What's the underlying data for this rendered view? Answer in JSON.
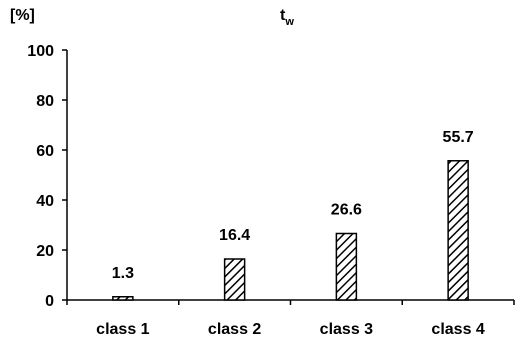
{
  "chart_data": {
    "type": "bar",
    "title": "t",
    "title_subscript": "w",
    "ylabel": "[%]",
    "xlabel": "",
    "categories": [
      "class 1",
      "class 2",
      "class 3",
      "class 4"
    ],
    "values": [
      1.3,
      16.4,
      26.6,
      55.7
    ],
    "data_labels": [
      "1.3",
      "16.4",
      "26.6",
      "55.7"
    ],
    "ylim": [
      0,
      100
    ],
    "yticks": [
      0,
      20,
      40,
      60,
      80,
      100
    ],
    "ytick_labels": [
      "0",
      "20",
      "40",
      "60",
      "80",
      "100"
    ],
    "grid": false,
    "legend": "none",
    "bar_fill": "diagonal-hatch",
    "colors": {
      "bar_stroke": "#000000",
      "bar_hatch": "#000000",
      "axis": "#000000"
    }
  }
}
